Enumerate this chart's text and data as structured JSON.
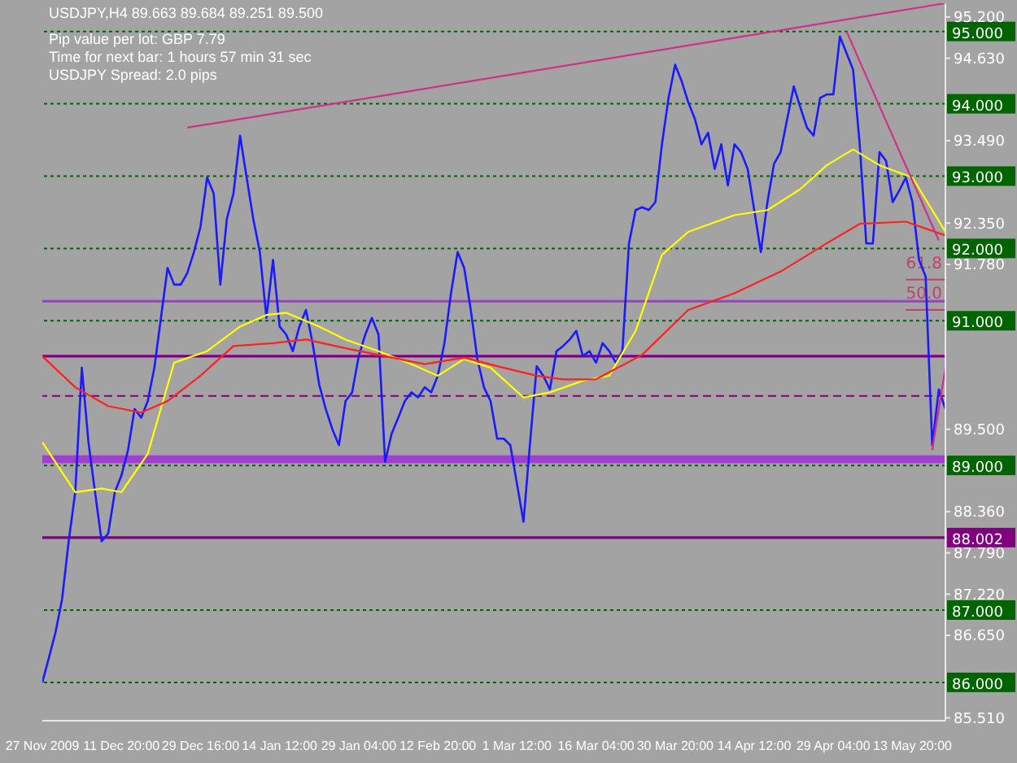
{
  "chart_data": {
    "type": "line",
    "title": "USDJPY,H4  89.663 89.684 89.251 89.500",
    "annotations": [
      "Pip value per lot: GBP 7.79",
      "Time for next bar: 1 hours 57 min 31 sec",
      "USDJPY Spread:  2.0 pips",
      {
        "text": "61.8",
        "y": 91.57
      },
      {
        "text": "50.0",
        "y": 91.15
      }
    ],
    "categories": [
      "27 Nov 2009",
      null,
      null,
      null,
      null,
      null,
      null,
      null,
      null,
      null,
      null,
      null,
      "11 Dec 20:00",
      null,
      null,
      null,
      null,
      null,
      null,
      null,
      null,
      null,
      null,
      null,
      "29 Dec 16:00",
      null,
      null,
      null,
      null,
      null,
      null,
      null,
      null,
      null,
      null,
      null,
      "14 Jan 12:00",
      null,
      null,
      null,
      null,
      null,
      null,
      null,
      null,
      null,
      null,
      null,
      "29 Jan 04:00",
      null,
      null,
      null,
      null,
      null,
      null,
      null,
      null,
      null,
      null,
      null,
      "12 Feb 20:00",
      null,
      null,
      null,
      null,
      null,
      null,
      null,
      null,
      null,
      null,
      null,
      "1 Mar 12:00",
      null,
      null,
      null,
      null,
      null,
      null,
      null,
      null,
      null,
      null,
      null,
      "16 Mar 04:00",
      null,
      null,
      null,
      null,
      null,
      null,
      null,
      null,
      null,
      null,
      null,
      "30 Mar 20:00",
      null,
      null,
      null,
      null,
      null,
      null,
      null,
      null,
      null,
      null,
      null,
      "14 Apr 12:00",
      null,
      null,
      null,
      null,
      null,
      null,
      null,
      null,
      null,
      null,
      null,
      "29 Apr 04:00",
      null,
      null,
      null,
      null,
      null,
      null,
      null,
      null,
      null,
      null,
      null,
      "13 May 20:00",
      null,
      null,
      null,
      null,
      null
    ],
    "series": [
      {
        "color": "#1a1aff",
        "values": [
          86.0,
          86.34,
          86.69,
          87.15,
          87.95,
          88.63,
          90.35,
          89.32,
          88.63,
          87.95,
          88.06,
          88.63,
          88.86,
          89.21,
          89.78,
          89.66,
          89.89,
          90.35,
          91.04,
          91.73,
          91.5,
          91.5,
          91.66,
          91.95,
          92.3,
          92.98,
          92.76,
          91.5,
          92.41,
          92.76,
          93.56,
          92.98,
          92.41,
          91.95,
          91.04,
          91.84,
          90.92,
          90.81,
          90.58,
          90.92,
          91.15,
          90.69,
          90.12,
          89.78,
          89.5,
          89.28,
          89.89,
          90.01,
          90.51,
          90.81,
          91.04,
          90.81,
          89.05,
          89.44,
          89.66,
          89.89,
          90.01,
          89.94,
          90.08,
          90.01,
          90.24,
          90.69,
          91.38,
          91.95,
          91.73,
          91.15,
          90.47,
          90.08,
          89.89,
          89.37,
          89.37,
          89.28,
          88.75,
          88.22,
          89.32,
          90.37,
          90.24,
          90.05,
          90.58,
          90.65,
          90.74,
          90.86,
          90.51,
          90.58,
          90.42,
          90.69,
          90.58,
          90.42,
          90.58,
          92.07,
          92.53,
          92.57,
          92.53,
          92.64,
          93.44,
          94.08,
          94.54,
          94.31,
          94.02,
          93.79,
          93.44,
          93.6,
          93.1,
          93.44,
          92.87,
          93.44,
          93.33,
          93.1,
          92.53,
          91.95,
          92.64,
          93.17,
          93.33,
          93.79,
          94.24,
          93.95,
          93.67,
          93.56,
          94.08,
          94.13,
          94.13,
          94.93,
          94.7,
          94.47,
          93.44,
          92.07,
          92.07,
          93.33,
          93.21,
          92.64,
          92.8,
          92.98,
          92.64,
          91.84,
          91.61,
          89.28,
          90.05,
          89.78
        ]
      },
      {
        "color": "#ffff00",
        "values": [
          89.32,
          null,
          null,
          null,
          null,
          88.63,
          null,
          null,
          null,
          88.68,
          null,
          null,
          88.63,
          null,
          null,
          null,
          89.16,
          null,
          null,
          null,
          90.42,
          null,
          null,
          null,
          null,
          90.58,
          null,
          null,
          null,
          null,
          90.92,
          null,
          null,
          null,
          91.08,
          null,
          null,
          91.11,
          null,
          null,
          null,
          null,
          90.92,
          null,
          null,
          null,
          90.74,
          null,
          null,
          null,
          null,
          90.58,
          null,
          null,
          null,
          null,
          90.4,
          null,
          null,
          null,
          90.24,
          null,
          null,
          null,
          90.47,
          null,
          null,
          null,
          90.35,
          null,
          null,
          null,
          null,
          89.94,
          null,
          null,
          null,
          90.01,
          null,
          null,
          null,
          null,
          90.17,
          null,
          null,
          null,
          90.24,
          null,
          null,
          null,
          90.86,
          null,
          null,
          null,
          91.91,
          null,
          null,
          null,
          92.23,
          null,
          null,
          null,
          null,
          null,
          null,
          92.46,
          null,
          null,
          null,
          null,
          92.53,
          null,
          null,
          null,
          null,
          92.82,
          null,
          null,
          null,
          93.15,
          null,
          null,
          null,
          93.37,
          null,
          null,
          null,
          93.15,
          null,
          null,
          null,
          null,
          92.98,
          null,
          null,
          null,
          null,
          92.23
        ]
      },
      {
        "color": "#ff2020",
        "values": [
          90.51,
          null,
          null,
          null,
          null,
          90.08,
          null,
          null,
          null,
          null,
          89.82,
          null,
          null,
          null,
          null,
          89.73,
          null,
          null,
          null,
          89.89,
          null,
          null,
          null,
          null,
          90.24,
          null,
          null,
          null,
          null,
          90.65,
          null,
          null,
          null,
          null,
          null,
          90.69,
          null,
          null,
          null,
          null,
          90.74,
          null,
          null,
          null,
          null,
          null,
          90.62,
          null,
          null,
          null,
          null,
          null,
          90.51,
          null,
          null,
          null,
          null,
          null,
          90.4,
          null,
          null,
          null,
          null,
          null,
          90.49,
          null,
          null,
          null,
          null,
          null,
          90.35,
          null,
          null,
          null,
          null,
          90.24,
          null,
          null,
          null,
          90.19,
          null,
          null,
          null,
          null,
          90.19,
          null,
          null,
          null,
          null,
          null,
          null,
          90.53,
          null,
          null,
          null,
          null,
          null,
          null,
          91.15,
          null,
          null,
          null,
          null,
          null,
          null,
          91.38,
          null,
          null,
          null,
          null,
          null,
          null,
          91.68,
          null,
          null,
          null,
          null,
          null,
          null,
          92.07,
          null,
          null,
          null,
          null,
          92.34,
          null,
          null,
          null,
          null,
          null,
          null,
          92.37,
          null,
          null,
          null,
          null,
          null,
          92.18
        ]
      },
      {
        "color": "#d0308a",
        "values": [
          null,
          null,
          null,
          null,
          null,
          null,
          null,
          null,
          null,
          null,
          null,
          null,
          null,
          null,
          null,
          null,
          null,
          null,
          null,
          null,
          null,
          null,
          93.67,
          null,
          null,
          null,
          null,
          null,
          null,
          null,
          null,
          null,
          null,
          null,
          null,
          null,
          null,
          null,
          null,
          null,
          null,
          null,
          null,
          null,
          null,
          null,
          null,
          null,
          null,
          null,
          null,
          null,
          null,
          null,
          null,
          null,
          null,
          null,
          null,
          null,
          null,
          null,
          null,
          null,
          null,
          null,
          null,
          null,
          null,
          null,
          null,
          null,
          null,
          null,
          null,
          null,
          null,
          null,
          null,
          null,
          null,
          null,
          null,
          null,
          null,
          null,
          null,
          null,
          null,
          null,
          null,
          null,
          null,
          null,
          null,
          null,
          null,
          null,
          null,
          null,
          null,
          null,
          null,
          null,
          null,
          null,
          null,
          null,
          null,
          null,
          null,
          null,
          null,
          null,
          null,
          null,
          null,
          null,
          null,
          null,
          null,
          null,
          null,
          null,
          null,
          null,
          null,
          null,
          null,
          null,
          null,
          null,
          null,
          null,
          null,
          null,
          null,
          95.39
        ]
      },
      {
        "color": "#d0308a",
        "values": [
          null,
          null,
          null,
          null,
          null,
          null,
          null,
          null,
          null,
          null,
          null,
          null,
          null,
          null,
          null,
          null,
          null,
          null,
          null,
          null,
          null,
          null,
          null,
          null,
          null,
          null,
          null,
          null,
          null,
          null,
          null,
          null,
          null,
          null,
          null,
          null,
          null,
          null,
          null,
          null,
          null,
          null,
          null,
          null,
          null,
          null,
          null,
          null,
          null,
          null,
          null,
          null,
          null,
          null,
          null,
          null,
          null,
          null,
          null,
          null,
          null,
          null,
          null,
          null,
          null,
          null,
          null,
          null,
          null,
          null,
          null,
          null,
          null,
          null,
          null,
          null,
          null,
          null,
          null,
          null,
          null,
          null,
          null,
          null,
          null,
          null,
          null,
          null,
          null,
          null,
          null,
          null,
          null,
          null,
          null,
          null,
          null,
          null,
          null,
          null,
          null,
          null,
          null,
          null,
          null,
          null,
          null,
          null,
          null,
          null,
          null,
          null,
          null,
          null,
          null,
          null,
          null,
          null,
          null,
          null,
          null,
          null,
          95.0,
          null,
          null,
          null,
          null,
          null,
          null,
          null,
          null,
          null,
          null,
          null,
          null,
          null,
          92.11,
          null
        ]
      },
      {
        "color": "#d0308a",
        "values": [
          null,
          null,
          null,
          null,
          null,
          null,
          null,
          null,
          null,
          null,
          null,
          null,
          null,
          null,
          null,
          null,
          null,
          null,
          null,
          null,
          null,
          null,
          null,
          null,
          null,
          null,
          null,
          null,
          null,
          null,
          null,
          null,
          null,
          null,
          null,
          null,
          null,
          null,
          null,
          null,
          null,
          null,
          null,
          null,
          null,
          null,
          null,
          null,
          null,
          null,
          null,
          null,
          null,
          null,
          null,
          null,
          null,
          null,
          null,
          null,
          null,
          null,
          null,
          null,
          null,
          null,
          null,
          null,
          null,
          null,
          null,
          null,
          null,
          null,
          null,
          null,
          null,
          null,
          null,
          null,
          null,
          null,
          null,
          null,
          null,
          null,
          null,
          null,
          null,
          null,
          null,
          null,
          null,
          null,
          null,
          null,
          null,
          null,
          null,
          null,
          null,
          null,
          null,
          null,
          null,
          null,
          null,
          null,
          null,
          null,
          null,
          null,
          null,
          null,
          null,
          null,
          null,
          null,
          null,
          null,
          null,
          null,
          null,
          null,
          null,
          null,
          null,
          null,
          null,
          null,
          null,
          null,
          null,
          null,
          null,
          89.21,
          null,
          90.35
        ]
      }
    ],
    "ylim": [
      85.47,
      95.39
    ],
    "yticks": [
      {
        "value": 95.2,
        "label": "95.200"
      },
      {
        "value": 94.63,
        "label": "94.630"
      },
      {
        "value": 93.49,
        "label": "93.490"
      },
      {
        "value": 92.35,
        "label": "92.350"
      },
      {
        "value": 91.78,
        "label": "91.780"
      },
      {
        "value": 89.5,
        "label": "89.500"
      },
      {
        "value": 88.36,
        "label": "88.360"
      },
      {
        "value": 87.79,
        "label": "87.790"
      },
      {
        "value": 87.22,
        "label": "87.220"
      },
      {
        "value": 86.65,
        "label": "86.650"
      },
      {
        "value": 85.51,
        "label": "85.510"
      }
    ],
    "ref_lines": [
      {
        "axis": "y",
        "value": 95,
        "label": "95.000",
        "color": "#006400",
        "line_style": "dotted"
      },
      {
        "axis": "y",
        "value": 94,
        "label": "94.000",
        "color": "#006400",
        "line_style": "dotted"
      },
      {
        "axis": "y",
        "value": 93,
        "label": "93.000",
        "color": "#006400",
        "line_style": "dotted"
      },
      {
        "axis": "y",
        "value": 92,
        "label": "92.000",
        "color": "#006400",
        "line_style": "dotted"
      },
      {
        "axis": "y",
        "value": 91,
        "label": "91.000",
        "color": "#006400",
        "line_style": "dotted"
      },
      {
        "axis": "y",
        "value": 89,
        "label": "89.000",
        "color": "#006400",
        "line_style": "dotted"
      },
      {
        "axis": "y",
        "value": 87,
        "label": "87.000",
        "color": "#006400",
        "line_style": "dotted"
      },
      {
        "axis": "y",
        "value": 86,
        "label": "86.000",
        "color": "#006400",
        "line_style": "dotted"
      },
      {
        "axis": "y",
        "value": 91.27,
        "label": null,
        "color": "#a040d0",
        "line_style": "solid"
      },
      {
        "axis": "y",
        "value": 90.51,
        "label": null,
        "color": "#800080",
        "line_style": "solid"
      },
      {
        "axis": "y",
        "value": 89.96,
        "label": null,
        "color": "#800080",
        "line_style": "dashed"
      },
      {
        "axis": "y",
        "value": 88.002,
        "label": "88.002",
        "color": "#800080",
        "line_style": "solid"
      }
    ],
    "bands": [
      {
        "axis": "y",
        "from": 89.03,
        "to": 89.14,
        "label": null,
        "color": "#a040d0"
      }
    ],
    "grid": false,
    "marker": "none",
    "line_style": "solid"
  }
}
